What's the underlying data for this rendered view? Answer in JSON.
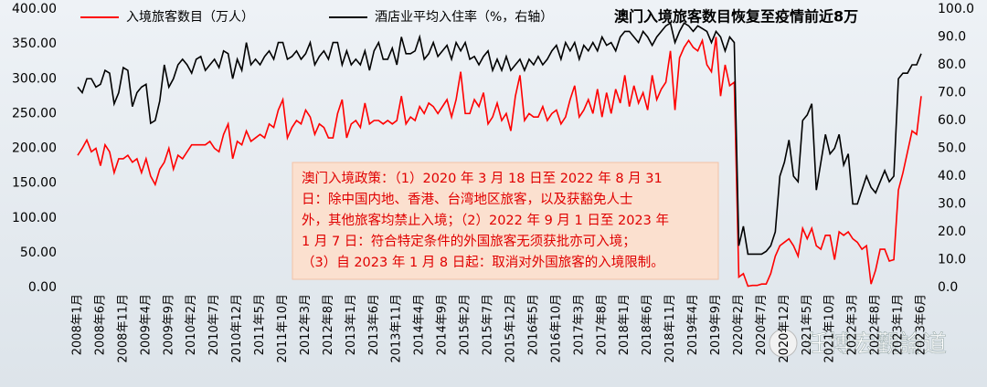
{
  "chart_data": {
    "type": "line",
    "title": "澳门入境旅客数目恢复至疫情前近8万",
    "categories": [
      "2008年1月",
      null,
      null,
      null,
      null,
      "2008年6月",
      null,
      null,
      null,
      null,
      "2008年11月",
      null,
      null,
      null,
      null,
      "2009年4月",
      null,
      null,
      null,
      null,
      "2009年9月",
      null,
      null,
      null,
      null,
      "2010年2月",
      null,
      null,
      null,
      null,
      "2010年7月",
      null,
      null,
      null,
      null,
      "2010年12月",
      null,
      null,
      null,
      null,
      "2011年5月",
      null,
      null,
      null,
      null,
      "2011年10月",
      null,
      null,
      null,
      null,
      "2012年3月",
      null,
      null,
      null,
      null,
      "2012年8月",
      null,
      null,
      null,
      null,
      "2013年1月",
      null,
      null,
      null,
      null,
      "2013年6月",
      null,
      null,
      null,
      null,
      "2013年11月",
      null,
      null,
      null,
      null,
      "2014年4月",
      null,
      null,
      null,
      null,
      "2014年9月",
      null,
      null,
      null,
      null,
      "2015年2月",
      null,
      null,
      null,
      null,
      "2015年7月",
      null,
      null,
      null,
      null,
      "2015年12月",
      null,
      null,
      null,
      null,
      "2016年5月",
      null,
      null,
      null,
      null,
      "2016年10月",
      null,
      null,
      null,
      null,
      "2017年3月",
      null,
      null,
      null,
      null,
      "2017年8月",
      null,
      null,
      null,
      null,
      "2018年1月",
      null,
      null,
      null,
      null,
      "2018年6月",
      null,
      null,
      null,
      null,
      "2018年11月",
      null,
      null,
      null,
      null,
      "2019年4月",
      null,
      null,
      null,
      null,
      "2019年9月",
      null,
      null,
      null,
      null,
      "2020年2月",
      null,
      null,
      null,
      null,
      "2020年7月",
      null,
      null,
      null,
      null,
      "2020年12月",
      null,
      null,
      null,
      null,
      "2021年5月",
      null,
      null,
      null,
      null,
      "2021年10月",
      null,
      null,
      null,
      null,
      "2022年3月",
      null,
      null,
      null,
      null,
      "2022年8月",
      null,
      null,
      null,
      null,
      "2023年1月",
      null,
      null,
      null,
      null,
      "2023年6月"
    ],
    "series": [
      {
        "name": "入境旅客数目（万人）",
        "color": "#ff0000",
        "axis": "y",
        "values": [
          190,
          200,
          212,
          195,
          200,
          175,
          205,
          195,
          165,
          185,
          185,
          190,
          180,
          185,
          165,
          185,
          160,
          148,
          170,
          180,
          200,
          170,
          190,
          185,
          195,
          205,
          205,
          205,
          205,
          210,
          200,
          195,
          220,
          235,
          185,
          210,
          205,
          225,
          210,
          215,
          220,
          215,
          235,
          230,
          255,
          270,
          215,
          230,
          240,
          235,
          255,
          245,
          220,
          235,
          230,
          215,
          215,
          250,
          270,
          215,
          235,
          240,
          230,
          265,
          235,
          240,
          240,
          235,
          240,
          235,
          240,
          275,
          235,
          245,
          240,
          260,
          250,
          265,
          260,
          250,
          260,
          270,
          245,
          270,
          310,
          250,
          250,
          270,
          260,
          280,
          235,
          245,
          265,
          240,
          250,
          225,
          275,
          305,
          240,
          250,
          245,
          245,
          260,
          240,
          250,
          255,
          235,
          245,
          270,
          290,
          245,
          255,
          270,
          250,
          285,
          245,
          280,
          250,
          285,
          265,
          305,
          260,
          290,
          265,
          280,
          255,
          305,
          270,
          285,
          295,
          340,
          255,
          330,
          345,
          355,
          345,
          340,
          355,
          320,
          310,
          360,
          275,
          320,
          290,
          295,
          15,
          20,
          2,
          3,
          3,
          5,
          5,
          20,
          45,
          60,
          65,
          70,
          60,
          45,
          85,
          70,
          85,
          60,
          55,
          75,
          75,
          40,
          80,
          75,
          80,
          70,
          65,
          55,
          60,
          5,
          25,
          55,
          55,
          38,
          40,
          140,
          165,
          195,
          225,
          220,
          275
        ]
      },
      {
        "name": "酒店业平均入住率（%，右轴）",
        "color": "#000000",
        "axis": "y2",
        "values": [
          72,
          70,
          75,
          75,
          72,
          73,
          78,
          77,
          66,
          70,
          79,
          78,
          65,
          70,
          72,
          73,
          59,
          60,
          67,
          80,
          72,
          75,
          80,
          82,
          80,
          77,
          82,
          83,
          78,
          80,
          82,
          79,
          85,
          84,
          75,
          82,
          78,
          88,
          80,
          82,
          80,
          83,
          85,
          82,
          88,
          88,
          82,
          83,
          85,
          82,
          84,
          88,
          80,
          83,
          85,
          82,
          88,
          88,
          80,
          85,
          80,
          82,
          80,
          85,
          78,
          85,
          88,
          82,
          82,
          86,
          80,
          90,
          84,
          84,
          85,
          90,
          82,
          84,
          88,
          83,
          85,
          87,
          82,
          88,
          85,
          88,
          82,
          83,
          80,
          83,
          85,
          78,
          82,
          78,
          83,
          78,
          80,
          82,
          78,
          82,
          80,
          83,
          80,
          82,
          85,
          87,
          82,
          88,
          85,
          88,
          82,
          87,
          85,
          88,
          85,
          90,
          87,
          88,
          85,
          90,
          92,
          92,
          90,
          88,
          92,
          90,
          87,
          90,
          92,
          94,
          95,
          88,
          92,
          95,
          94,
          92,
          94,
          93,
          92,
          88,
          92,
          90,
          85,
          90,
          88,
          15,
          22,
          12,
          12,
          12,
          12,
          13,
          15,
          20,
          40,
          45,
          53,
          40,
          38,
          60,
          62,
          66,
          35,
          45,
          55,
          48,
          50,
          55,
          44,
          48,
          30,
          30,
          35,
          40,
          36,
          34,
          38,
          42,
          38,
          40,
          75,
          77,
          77,
          80,
          80,
          84
        ]
      }
    ],
    "ylim": [
      0,
      400
    ],
    "yticks": [
      {
        "value": 0,
        "label": "0.00"
      },
      {
        "value": 50,
        "label": "50.00"
      },
      {
        "value": 100,
        "label": "100.00"
      },
      {
        "value": 150,
        "label": "150.00"
      },
      {
        "value": 200,
        "label": "200.00"
      },
      {
        "value": 250,
        "label": "250.00"
      },
      {
        "value": 300,
        "label": "300.00"
      },
      {
        "value": 350,
        "label": "350.00"
      },
      {
        "value": 400,
        "label": "400.00"
      }
    ],
    "y2lim": [
      0,
      100
    ],
    "y2ticks": [
      {
        "value": 0,
        "label": "0.0"
      },
      {
        "value": 10,
        "label": "10.0"
      },
      {
        "value": 20,
        "label": "20.0"
      },
      {
        "value": 30,
        "label": "30.0"
      },
      {
        "value": 40,
        "label": "40.0"
      },
      {
        "value": 50,
        "label": "50.0"
      },
      {
        "value": 60,
        "label": "60.0"
      },
      {
        "value": 70,
        "label": "70.0"
      },
      {
        "value": 80,
        "label": "80.0"
      },
      {
        "value": 90,
        "label": "90.0"
      },
      {
        "value": 100,
        "label": "100.0"
      }
    ],
    "annotation": [
      "澳门入境政策：（1）2020 年 3 月 18 日至 2022 年 8 月 31",
      "日：除中国内地、香港、台湾地区旅客，以及获豁免人士",
      "外，其他旅客均禁止入境；（2）2022 年 9 月 1 日至 2023 年",
      "1 月 7 日：符合特定条件的外国旅客无须获批亦可入境；",
      "（3）自 2023 年 1 月 8 日起：取消对外国旅客的入境限制。"
    ],
    "watermark": "任博宏觀論道"
  }
}
